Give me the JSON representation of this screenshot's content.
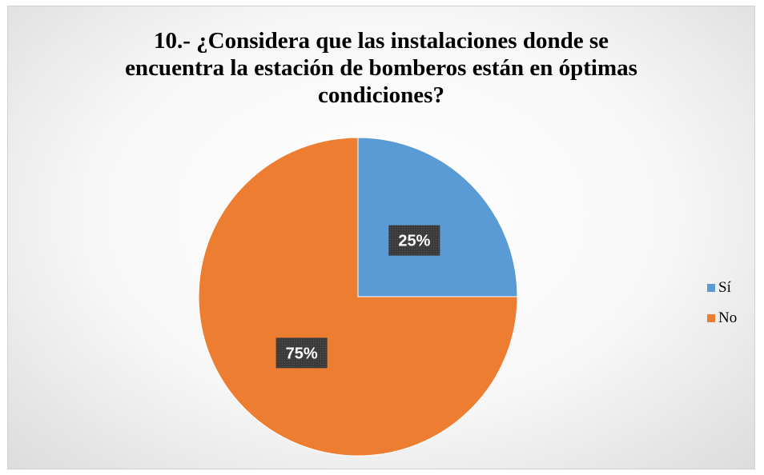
{
  "chart_data": {
    "type": "pie",
    "title": "10.- ¿Considera que las instalaciones donde se encuentra la estación de bomberos están en óptimas condiciones?",
    "title_lines": [
      "10.- ¿Considera que las instalaciones donde se",
      "encuentra la estación de bomberos están en óptimas",
      "condiciones?"
    ],
    "categories": [
      "Sí",
      "No"
    ],
    "values": [
      25,
      75
    ],
    "data_labels": [
      "25%",
      "75%"
    ],
    "colors": [
      "#5b9bd5",
      "#ed7d31"
    ],
    "legend_position": "right"
  }
}
